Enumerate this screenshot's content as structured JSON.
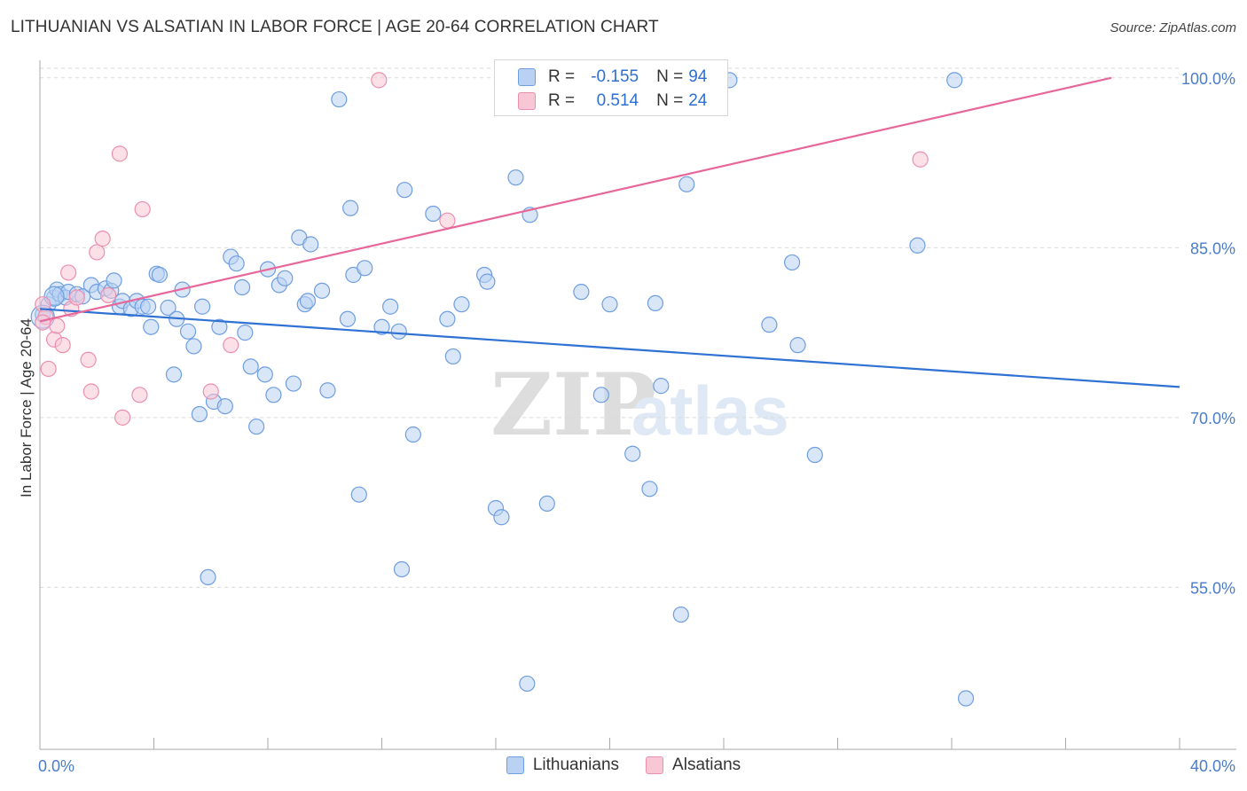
{
  "title": "LITHUANIAN VS ALSATIAN IN LABOR FORCE | AGE 20-64 CORRELATION CHART",
  "source": "Source: ZipAtlas.com",
  "colors": {
    "lithuanians_fill": "#b9d2f3",
    "lithuanians_stroke": "#6e9ee0",
    "lithuanians_line": "#2f72d4",
    "alsatians_fill": "#f9c6d6",
    "alsatians_stroke": "#eb8fae",
    "alsatians_line": "#e8679a",
    "axis_label": "#4a7cc9",
    "grid": "#d9d9d9"
  },
  "legend": {
    "rows": [
      {
        "r_label": "R =",
        "r_value": "-0.155",
        "n_label": "N =",
        "n_value": "94"
      },
      {
        "r_label": "R =",
        "r_value": "0.514",
        "n_label": "N =",
        "n_value": "24"
      }
    ]
  },
  "bottom_legend": [
    "Lithuanians",
    "Alsatians"
  ],
  "watermark": {
    "a": "ZIP",
    "b": "atlas"
  },
  "chart_data": {
    "type": "scatter",
    "title": "LITHUANIAN VS ALSATIAN IN LABOR FORCE | AGE 20-64 CORRELATION CHART",
    "xlabel": "",
    "ylabel": "In Labor Force | Age 20-64",
    "xlim": [
      0,
      40
    ],
    "ylim": [
      40,
      102
    ],
    "x_tick_labels": [
      {
        "value": 0,
        "label": "0.0%"
      },
      {
        "value": 40,
        "label": "40.0%"
      }
    ],
    "y_tick_labels": [
      {
        "value": 100,
        "label": "100.0%"
      },
      {
        "value": 85,
        "label": "85.0%"
      },
      {
        "value": 70,
        "label": "70.0%"
      },
      {
        "value": 55,
        "label": "55.0%"
      }
    ],
    "x_minor_ticks": [
      4,
      8,
      12,
      16,
      20,
      24,
      28,
      32,
      36,
      40
    ],
    "series": [
      {
        "name": "Lithuanians",
        "R": -0.155,
        "N": 94,
        "trend": {
          "x": [
            0,
            40
          ],
          "y": [
            79.6,
            72.7
          ]
        },
        "points": [
          [
            0.1,
            79.1
          ],
          [
            0.3,
            80.0
          ],
          [
            0.5,
            80.6
          ],
          [
            0.6,
            81.3
          ],
          [
            0.7,
            80.9
          ],
          [
            0.9,
            80.6
          ],
          [
            1.0,
            81.1
          ],
          [
            1.3,
            80.9
          ],
          [
            1.5,
            80.7
          ],
          [
            1.8,
            81.7
          ],
          [
            2.0,
            81.1
          ],
          [
            2.3,
            81.4
          ],
          [
            2.5,
            81.2
          ],
          [
            2.6,
            82.1
          ],
          [
            2.8,
            79.8
          ],
          [
            2.9,
            80.3
          ],
          [
            3.2,
            79.6
          ],
          [
            3.4,
            80.3
          ],
          [
            3.6,
            79.8
          ],
          [
            3.8,
            79.8
          ],
          [
            3.9,
            78.0
          ],
          [
            4.1,
            82.7
          ],
          [
            4.2,
            82.6
          ],
          [
            4.5,
            79.7
          ],
          [
            4.7,
            73.8
          ],
          [
            4.8,
            78.7
          ],
          [
            5.0,
            81.3
          ],
          [
            5.2,
            77.6
          ],
          [
            5.4,
            76.3
          ],
          [
            5.6,
            70.3
          ],
          [
            5.7,
            79.8
          ],
          [
            5.9,
            55.9
          ],
          [
            6.1,
            71.4
          ],
          [
            6.3,
            78.0
          ],
          [
            6.5,
            71.0
          ],
          [
            6.7,
            84.2
          ],
          [
            6.9,
            83.6
          ],
          [
            7.1,
            81.5
          ],
          [
            7.2,
            77.5
          ],
          [
            7.4,
            74.5
          ],
          [
            7.6,
            69.2
          ],
          [
            7.9,
            73.8
          ],
          [
            8.0,
            83.1
          ],
          [
            8.2,
            72.0
          ],
          [
            8.4,
            81.7
          ],
          [
            8.6,
            82.3
          ],
          [
            8.9,
            73.0
          ],
          [
            9.1,
            85.9
          ],
          [
            9.3,
            80.0
          ],
          [
            9.4,
            80.3
          ],
          [
            9.5,
            85.3
          ],
          [
            9.9,
            81.2
          ],
          [
            10.1,
            72.4
          ],
          [
            10.5,
            98.1
          ],
          [
            10.8,
            78.7
          ],
          [
            10.9,
            88.5
          ],
          [
            11.0,
            82.6
          ],
          [
            11.2,
            63.2
          ],
          [
            11.4,
            83.2
          ],
          [
            12.0,
            78.0
          ],
          [
            12.3,
            79.8
          ],
          [
            12.6,
            77.6
          ],
          [
            12.7,
            56.6
          ],
          [
            12.8,
            90.1
          ],
          [
            13.1,
            68.5
          ],
          [
            13.8,
            88.0
          ],
          [
            14.3,
            78.7
          ],
          [
            14.5,
            75.4
          ],
          [
            14.8,
            80.0
          ],
          [
            15.6,
            82.6
          ],
          [
            15.7,
            82.0
          ],
          [
            16.0,
            62.0
          ],
          [
            16.2,
            61.2
          ],
          [
            16.7,
            91.2
          ],
          [
            17.1,
            46.5
          ],
          [
            17.2,
            87.9
          ],
          [
            17.8,
            62.4
          ],
          [
            19.0,
            81.1
          ],
          [
            19.7,
            72.0
          ],
          [
            20.0,
            80.0
          ],
          [
            20.8,
            66.8
          ],
          [
            21.4,
            63.7
          ],
          [
            21.6,
            80.1
          ],
          [
            21.8,
            72.8
          ],
          [
            22.5,
            52.6
          ],
          [
            22.7,
            90.6
          ],
          [
            24.2,
            99.8
          ],
          [
            25.6,
            78.2
          ],
          [
            26.4,
            83.7
          ],
          [
            26.6,
            76.4
          ],
          [
            27.2,
            66.7
          ],
          [
            30.8,
            85.2
          ],
          [
            32.1,
            99.8
          ],
          [
            32.5,
            45.2
          ]
        ]
      },
      {
        "name": "Alsatians",
        "R": 0.514,
        "N": 24,
        "trend": {
          "x": [
            0,
            37.6
          ],
          "y": [
            78.5,
            100.0
          ]
        },
        "points": [
          [
            0.1,
            80.0
          ],
          [
            0.2,
            78.9
          ],
          [
            0.3,
            74.3
          ],
          [
            0.5,
            76.9
          ],
          [
            0.6,
            78.1
          ],
          [
            0.8,
            76.4
          ],
          [
            1.0,
            82.8
          ],
          [
            1.1,
            79.6
          ],
          [
            1.3,
            80.6
          ],
          [
            1.7,
            75.1
          ],
          [
            1.8,
            72.3
          ],
          [
            2.0,
            84.6
          ],
          [
            2.2,
            85.8
          ],
          [
            2.4,
            80.8
          ],
          [
            2.8,
            93.3
          ],
          [
            2.9,
            70.0
          ],
          [
            3.5,
            72.0
          ],
          [
            3.6,
            88.4
          ],
          [
            6.0,
            72.3
          ],
          [
            6.7,
            76.4
          ],
          [
            11.9,
            99.8
          ],
          [
            14.3,
            87.4
          ],
          [
            30.9,
            92.8
          ],
          [
            0.1,
            78.4
          ]
        ]
      }
    ]
  }
}
